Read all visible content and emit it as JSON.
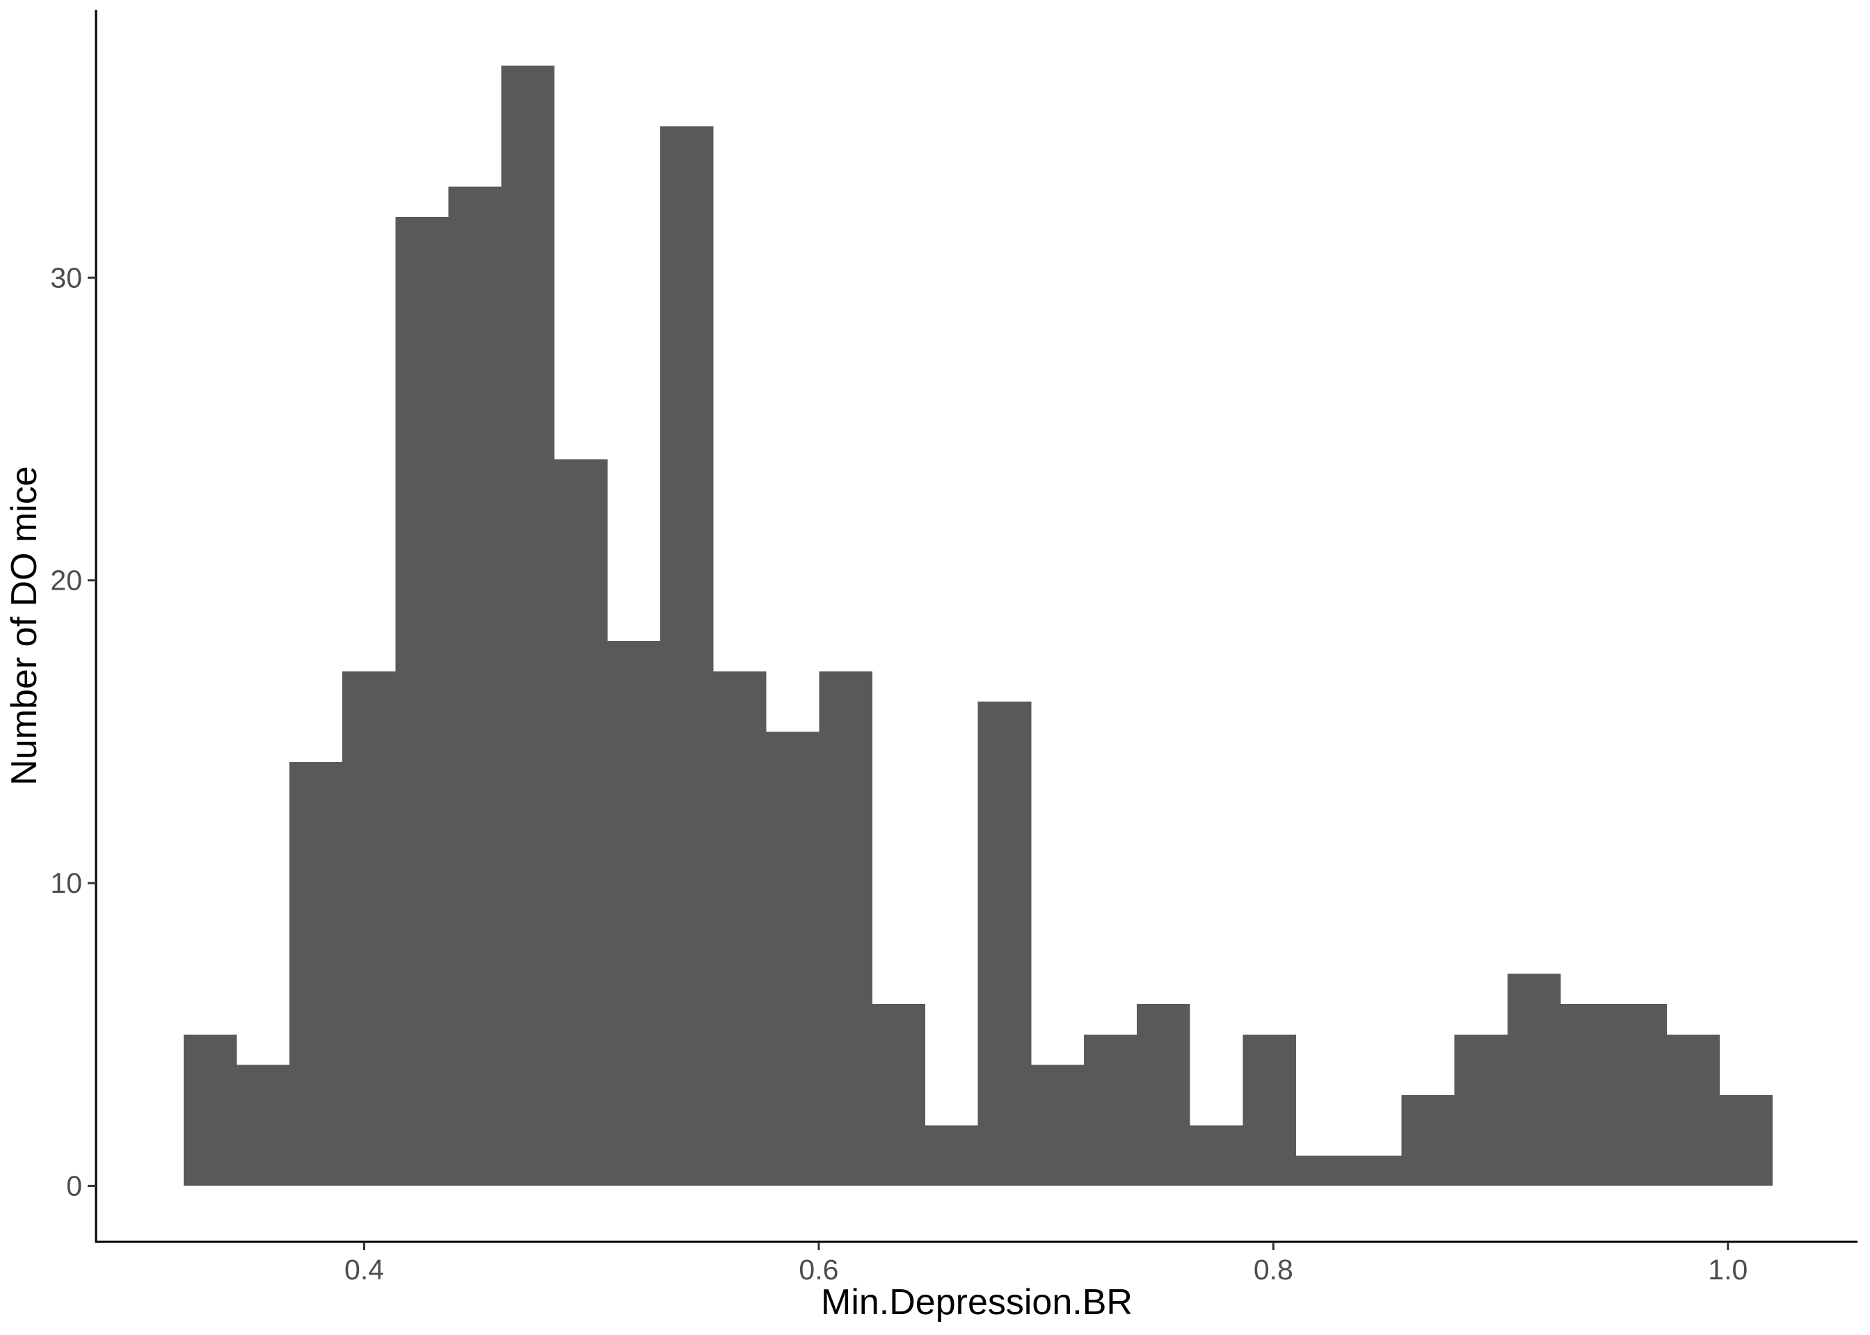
{
  "chart_data": {
    "type": "bar",
    "subtype": "histogram",
    "xlabel": "Min.Depression.BR",
    "ylabel": "Number of DO mice",
    "bin_width": 0.0233,
    "x_start": 0.3205,
    "bins": [
      {
        "x0": 0.3205,
        "x1": 0.3438,
        "count": 5
      },
      {
        "x0": 0.3438,
        "x1": 0.3671,
        "count": 4
      },
      {
        "x0": 0.3671,
        "x1": 0.3904,
        "count": 14
      },
      {
        "x0": 0.3904,
        "x1": 0.4137,
        "count": 17
      },
      {
        "x0": 0.4137,
        "x1": 0.437,
        "count": 32
      },
      {
        "x0": 0.437,
        "x1": 0.4603,
        "count": 33
      },
      {
        "x0": 0.4603,
        "x1": 0.4836,
        "count": 37
      },
      {
        "x0": 0.4836,
        "x1": 0.5069,
        "count": 24
      },
      {
        "x0": 0.5069,
        "x1": 0.5302,
        "count": 18
      },
      {
        "x0": 0.5302,
        "x1": 0.5535,
        "count": 35
      },
      {
        "x0": 0.5535,
        "x1": 0.5768,
        "count": 17
      },
      {
        "x0": 0.5768,
        "x1": 0.6001,
        "count": 15
      },
      {
        "x0": 0.6001,
        "x1": 0.6234,
        "count": 17
      },
      {
        "x0": 0.6234,
        "x1": 0.6467,
        "count": 6
      },
      {
        "x0": 0.6467,
        "x1": 0.67,
        "count": 2
      },
      {
        "x0": 0.67,
        "x1": 0.6933,
        "count": 16
      },
      {
        "x0": 0.6933,
        "x1": 0.7166,
        "count": 4
      },
      {
        "x0": 0.7166,
        "x1": 0.7399,
        "count": 5
      },
      {
        "x0": 0.7399,
        "x1": 0.7632,
        "count": 6
      },
      {
        "x0": 0.7632,
        "x1": 0.7865,
        "count": 2
      },
      {
        "x0": 0.7865,
        "x1": 0.8098,
        "count": 5
      },
      {
        "x0": 0.8098,
        "x1": 0.8331,
        "count": 1
      },
      {
        "x0": 0.8331,
        "x1": 0.8564,
        "count": 1
      },
      {
        "x0": 0.8564,
        "x1": 0.8797,
        "count": 3
      },
      {
        "x0": 0.8797,
        "x1": 0.903,
        "count": 5
      },
      {
        "x0": 0.903,
        "x1": 0.9263,
        "count": 7
      },
      {
        "x0": 0.9263,
        "x1": 0.9496,
        "count": 6
      },
      {
        "x0": 0.9496,
        "x1": 0.9729,
        "count": 6
      },
      {
        "x0": 0.9729,
        "x1": 0.9962,
        "count": 5
      },
      {
        "x0": 0.9962,
        "x1": 1.0195,
        "count": 3
      }
    ],
    "xlim": [
      0.282,
      1.057
    ],
    "ylim": [
      -1.85,
      38.85
    ],
    "x_ticks": [
      {
        "value": 0.4,
        "label": "0.4"
      },
      {
        "value": 0.6,
        "label": "0.6"
      },
      {
        "value": 0.8,
        "label": "0.8"
      },
      {
        "value": 1.0,
        "label": "1.0"
      }
    ],
    "y_ticks": [
      {
        "value": 0,
        "label": "0"
      },
      {
        "value": 10,
        "label": "10"
      },
      {
        "value": 20,
        "label": "20"
      },
      {
        "value": 30,
        "label": "30"
      }
    ],
    "grid": false,
    "legend": "none",
    "colors": {
      "bar_fill": "#595959",
      "axis": "#000000",
      "tick_text": "#4d4d4d",
      "background": "#ffffff"
    }
  }
}
